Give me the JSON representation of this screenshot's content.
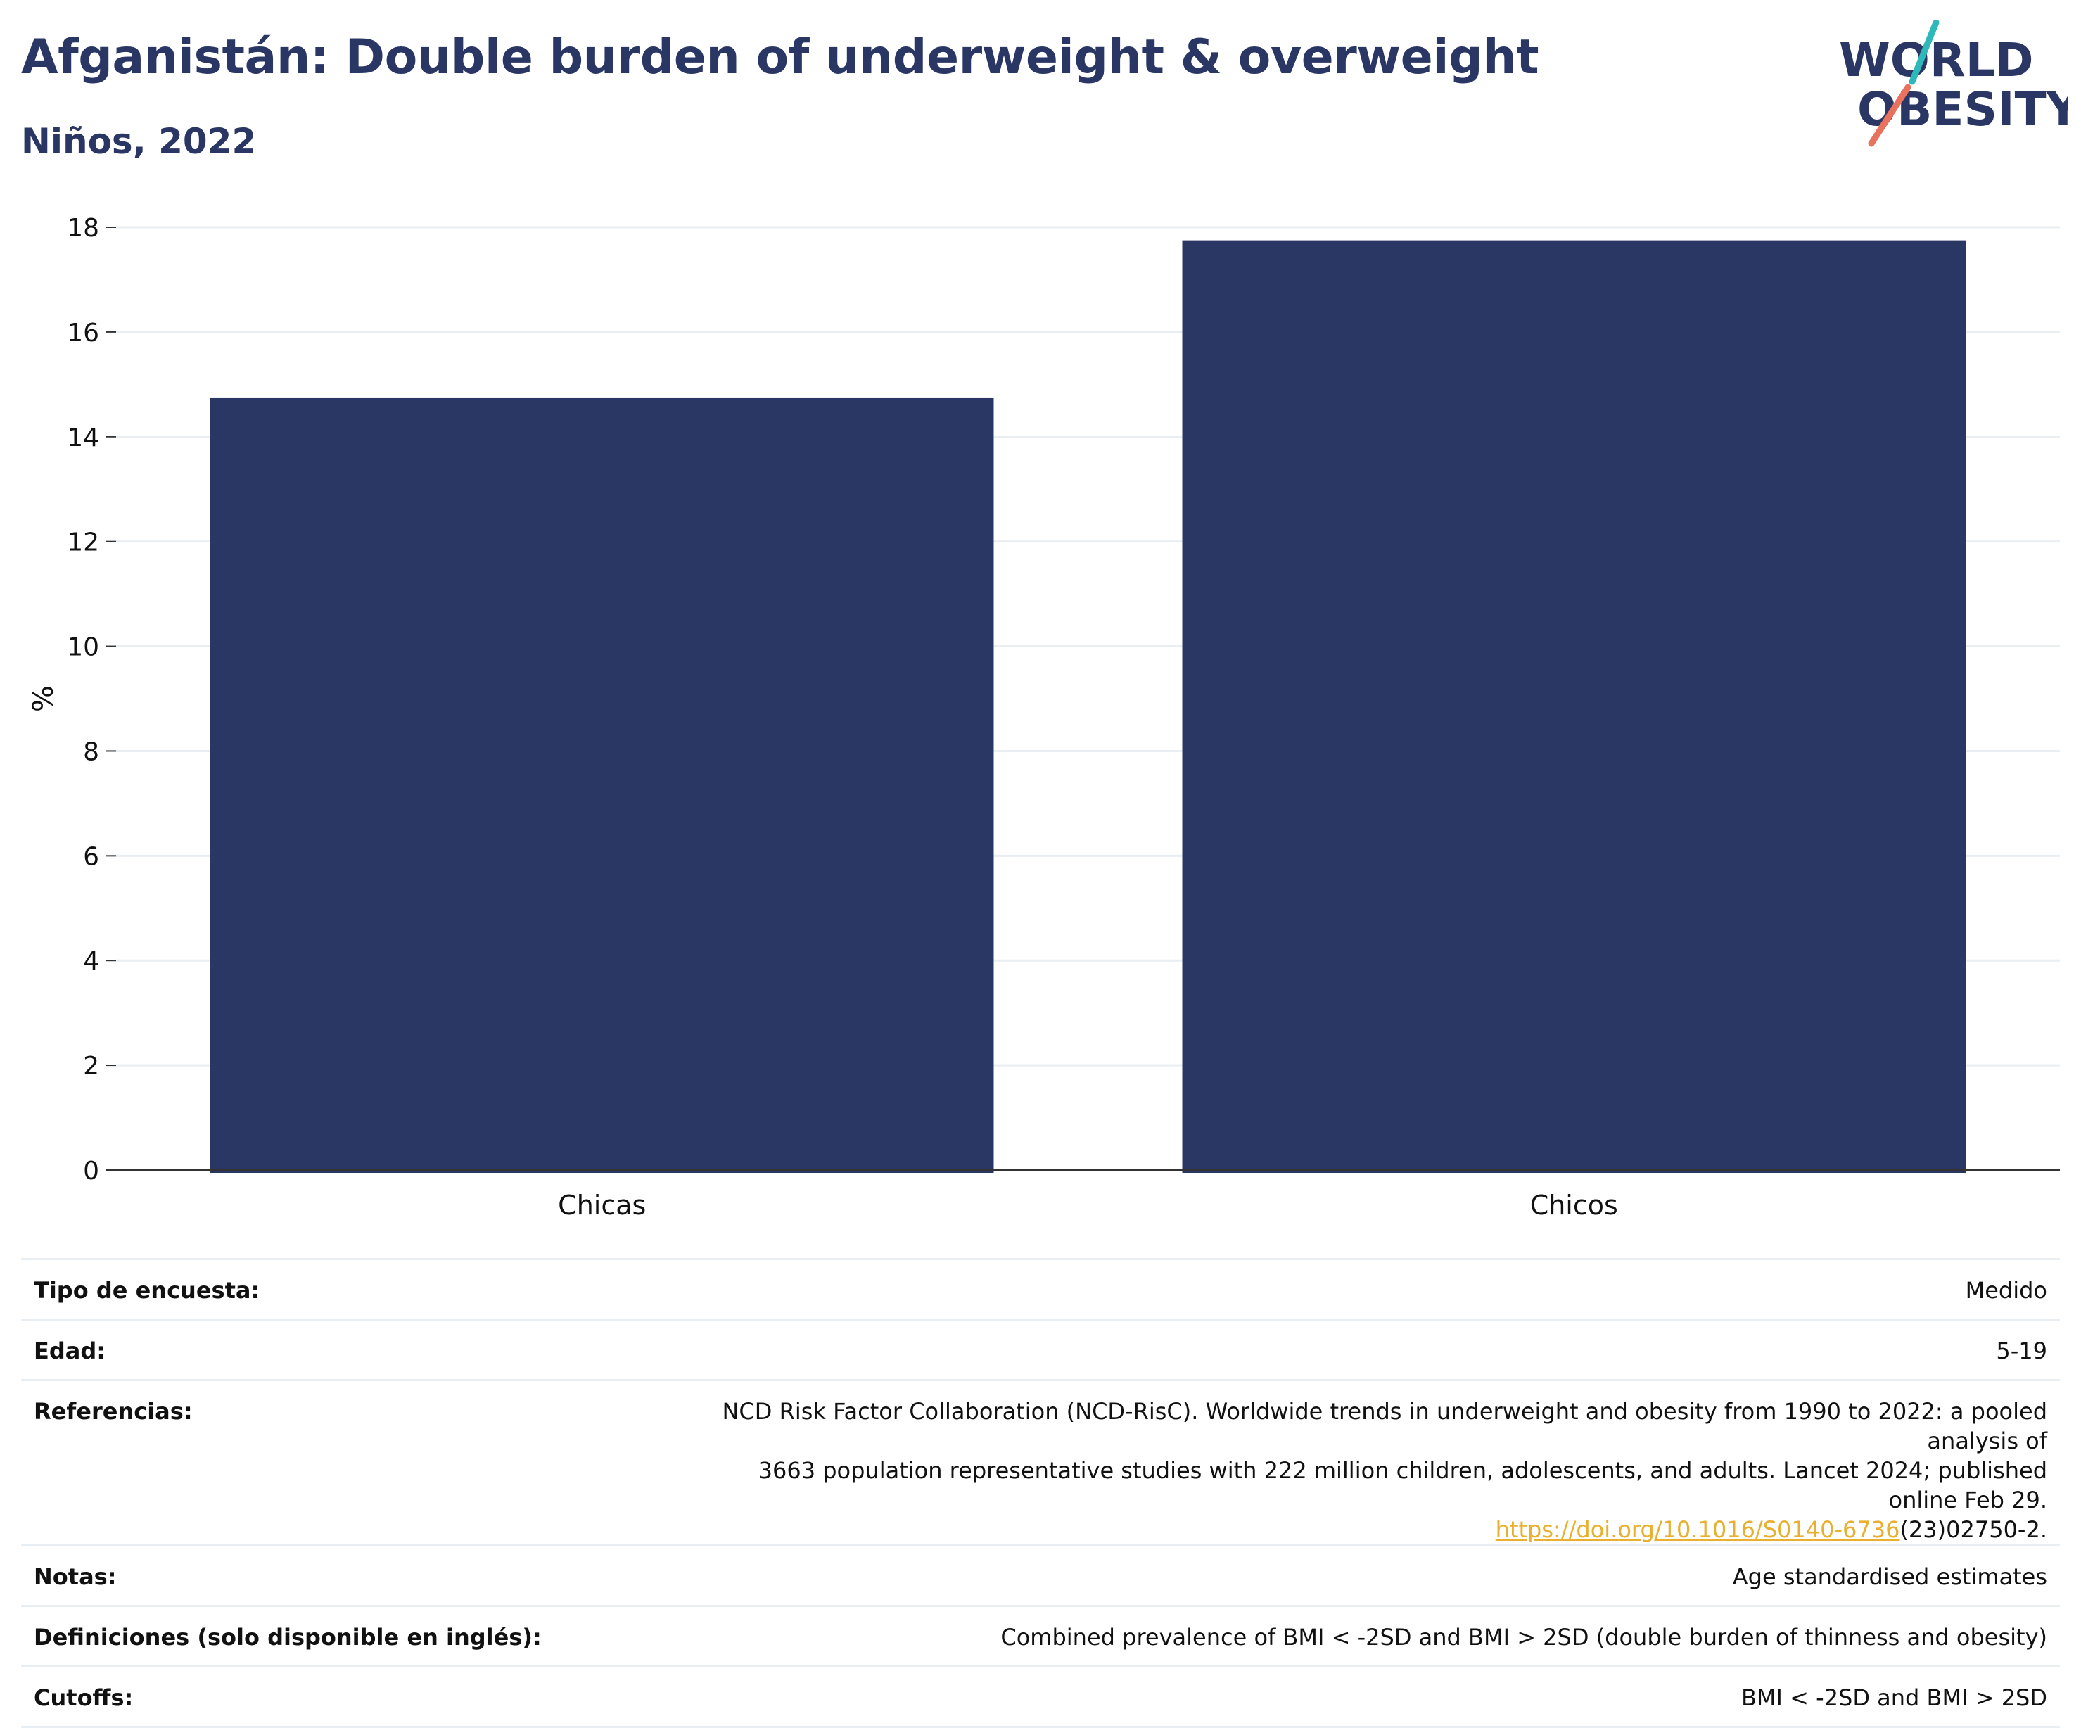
{
  "header": {
    "title": "Afganistán: Double burden of underweight & overweight",
    "subtitle": "Niños, 2022"
  },
  "logo": {
    "line1": "WORLD",
    "line2": "OBESITY",
    "colors": {
      "text": "#2a3663",
      "accent_teal": "#2fb8ba",
      "accent_coral": "#e9725e"
    }
  },
  "colors": {
    "bar": "#2a3663",
    "grid": "#e9eef2",
    "axis": "#333333",
    "link": "#e8b02e"
  },
  "chart_data": {
    "type": "bar",
    "categories": [
      "Chicas",
      "Chicos"
    ],
    "values": [
      14.75,
      17.75
    ],
    "ylabel": "%",
    "xlabel": "",
    "ylim": [
      0,
      18
    ],
    "yticks": [
      0,
      2,
      4,
      6,
      8,
      10,
      12,
      14,
      16,
      18
    ],
    "grid": true,
    "legend": "none"
  },
  "metadata": {
    "survey_type": {
      "label": "Tipo de encuesta:",
      "value": "Medido"
    },
    "age": {
      "label": "Edad:",
      "value": "5-19"
    },
    "references": {
      "label": "Referencias:",
      "line1": "NCD Risk Factor Collaboration (NCD-RisC). Worldwide trends in underweight and obesity from 1990 to 2022: a pooled analysis of",
      "line2": "3663 population representative studies with 222 million children, adolescents, and adults. Lancet 2024; published online Feb 29.",
      "link_text": "https://doi.org/10.1016/S0140-6736",
      "link_suffix": "(23)02750-2."
    },
    "notes": {
      "label": "Notas:",
      "value": "Age standardised estimates"
    },
    "definitions": {
      "label": "Definiciones (solo disponible en inglés):",
      "value": "Combined prevalence of BMI < -2SD and BMI > 2SD (double burden of thinness and obesity)"
    },
    "cutoffs": {
      "label": "Cutoffs:",
      "value": "BMI < -2SD and BMI > 2SD"
    }
  }
}
